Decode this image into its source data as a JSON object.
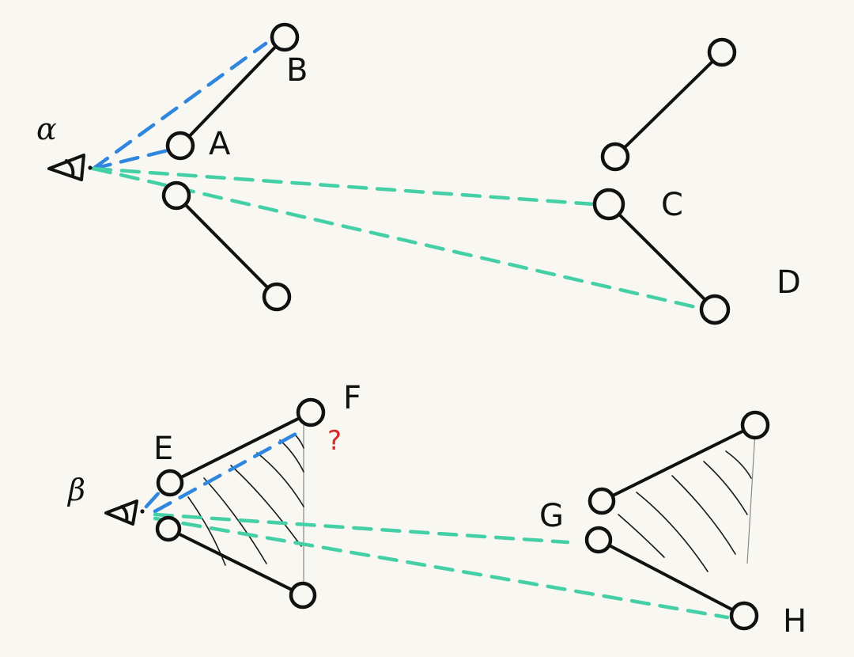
{
  "viewer_labels": {
    "alpha": "α",
    "beta": "β"
  },
  "node_labels": {
    "A": "A",
    "B": "B",
    "C": "C",
    "D": "D",
    "E": "E",
    "F": "F",
    "G": "G",
    "H": "H"
  },
  "question_mark": "?",
  "colors": {
    "background": "#f8f7f2",
    "ink": "#111111",
    "blue_dash": "#2f86df",
    "teal_dash": "#45cfa7",
    "question": "#d62828"
  }
}
